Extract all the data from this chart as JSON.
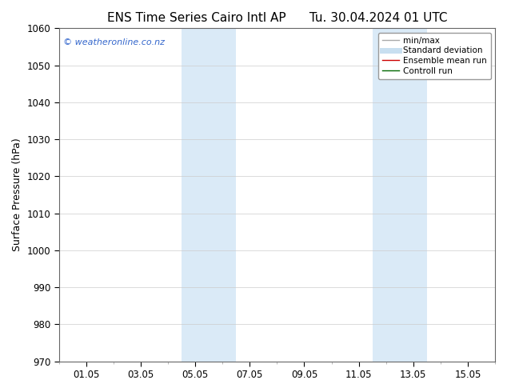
{
  "title_left": "ENS Time Series Cairo Intl AP",
  "title_right": "Tu. 30.04.2024 01 UTC",
  "ylabel": "Surface Pressure (hPa)",
  "ylim": [
    970,
    1060
  ],
  "yticks": [
    970,
    980,
    990,
    1000,
    1010,
    1020,
    1030,
    1040,
    1050,
    1060
  ],
  "xtick_labels": [
    "01.05",
    "03.05",
    "05.05",
    "07.05",
    "09.05",
    "11.05",
    "13.05",
    "15.05"
  ],
  "xtick_positions": [
    0,
    2,
    4,
    6,
    8,
    10,
    12,
    14
  ],
  "xmin": -1,
  "xmax": 15,
  "shaded_bands": [
    {
      "x_start": 3.5,
      "x_end": 5.5
    },
    {
      "x_start": 10.5,
      "x_end": 12.5
    }
  ],
  "shade_color": "#daeaf7",
  "watermark_text": "© weatheronline.co.nz",
  "watermark_color": "#3366cc",
  "legend_items": [
    {
      "label": "min/max",
      "color": "#aaaaaa",
      "lw": 1.0
    },
    {
      "label": "Standard deviation",
      "color": "#c8dff0",
      "lw": 5
    },
    {
      "label": "Ensemble mean run",
      "color": "#cc0000",
      "lw": 1.0
    },
    {
      "label": "Controll run",
      "color": "#006600",
      "lw": 1.0
    }
  ],
  "bg_color": "#ffffff",
  "grid_color": "#cccccc",
  "title_fontsize": 11,
  "tick_fontsize": 8.5,
  "ylabel_fontsize": 9
}
